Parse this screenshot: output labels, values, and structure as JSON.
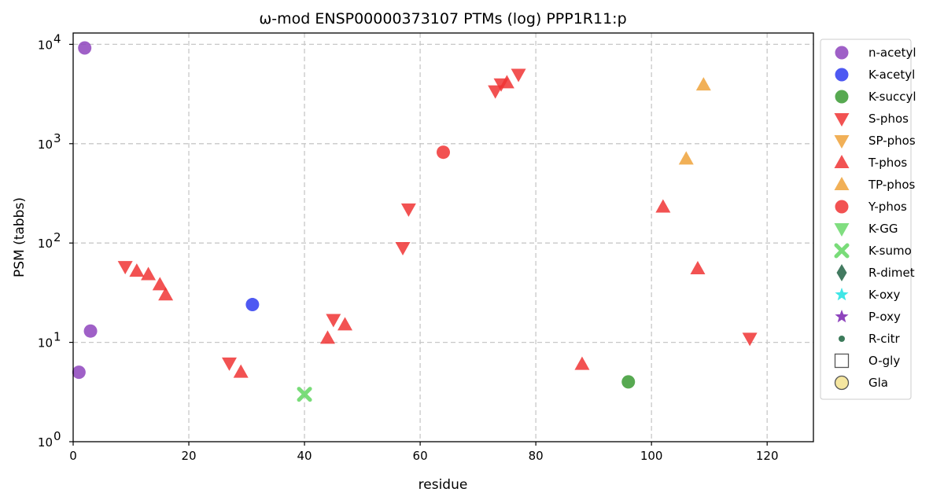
{
  "chart_data": {
    "type": "scatter",
    "title": "ω-mod ENSP00000373107 PTMs (log) PPP1R11:p",
    "xlabel": "residue",
    "ylabel": "PSM (tabbs)",
    "xlim": [
      0,
      128
    ],
    "ylim": [
      1,
      13000
    ],
    "yscale": "log",
    "grid": true,
    "legend_position": "outside-right",
    "x_ticks": [
      0,
      20,
      40,
      60,
      80,
      100,
      120
    ],
    "x_tick_labels": [
      "0",
      "20",
      "40",
      "60",
      "80",
      "100",
      "120"
    ],
    "y_ticks": [
      1,
      10,
      100,
      1000,
      10000
    ],
    "y_tick_labels": [
      {
        "base": "10",
        "exp": "0"
      },
      {
        "base": "10",
        "exp": "1"
      },
      {
        "base": "10",
        "exp": "2"
      },
      {
        "base": "10",
        "exp": "3"
      },
      {
        "base": "10",
        "exp": "4"
      }
    ],
    "series": [
      {
        "name": "n-acetyl",
        "marker": "circle",
        "color": "#8e44bd",
        "points": [
          [
            2,
            9200
          ],
          [
            3,
            13
          ],
          [
            1,
            5
          ]
        ]
      },
      {
        "name": "K-acetyl",
        "marker": "circle",
        "color": "#2f3cf0",
        "points": [
          [
            31,
            24
          ]
        ]
      },
      {
        "name": "K-succyl",
        "marker": "circle",
        "color": "#3a9a32",
        "points": [
          [
            96,
            4
          ]
        ]
      },
      {
        "name": "S-phos",
        "marker": "triangle-down",
        "color": "#f03434",
        "points": [
          [
            9,
            58
          ],
          [
            27,
            6.2
          ],
          [
            45,
            17
          ],
          [
            57,
            90
          ],
          [
            58,
            220
          ],
          [
            73,
            3400
          ],
          [
            74,
            4000
          ],
          [
            77,
            5000
          ],
          [
            117,
            11
          ]
        ]
      },
      {
        "name": "SP-phos",
        "marker": "triangle-down",
        "color": "#eea23a",
        "points": []
      },
      {
        "name": "T-phos",
        "marker": "triangle-up",
        "color": "#f03434",
        "points": [
          [
            11,
            52
          ],
          [
            13,
            48
          ],
          [
            15,
            38
          ],
          [
            16,
            30
          ],
          [
            29,
            5
          ],
          [
            44,
            11
          ],
          [
            47,
            15
          ],
          [
            75,
            4100
          ],
          [
            88,
            6
          ],
          [
            102,
            230
          ],
          [
            108,
            55
          ]
        ]
      },
      {
        "name": "TP-phos",
        "marker": "triangle-up",
        "color": "#eea23a",
        "points": [
          [
            106,
            700
          ],
          [
            109,
            3900
          ]
        ]
      },
      {
        "name": "Y-phos",
        "marker": "circle",
        "color": "#f03434",
        "points": [
          [
            64,
            820
          ]
        ]
      },
      {
        "name": "K-GG",
        "marker": "triangle-down",
        "color": "#6ad86a",
        "points": []
      },
      {
        "name": "K-sumo",
        "marker": "x",
        "color": "#6ad86a",
        "points": [
          [
            40,
            3
          ]
        ]
      },
      {
        "name": "R-dimet",
        "marker": "diamond",
        "color": "#2e6b4f",
        "points": []
      },
      {
        "name": "K-oxy",
        "marker": "star",
        "color": "#3fe6e6",
        "points": []
      },
      {
        "name": "P-oxy",
        "marker": "star",
        "color": "#8e44bd",
        "points": []
      },
      {
        "name": "R-citr",
        "marker": "small-circle",
        "color": "#3c7a5a",
        "points": []
      },
      {
        "name": "O-gly",
        "marker": "square-open",
        "color": "#555555",
        "points": []
      },
      {
        "name": "Gla",
        "marker": "circle-open",
        "color": "#f5e6a0",
        "points": []
      }
    ]
  }
}
